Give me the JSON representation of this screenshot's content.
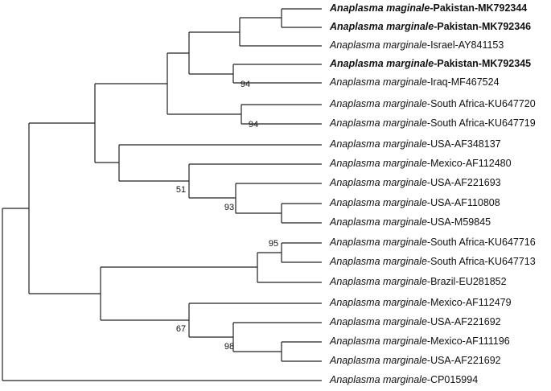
{
  "leaves": [
    {
      "species": "Anaplasma maginale",
      "suffix": "-Pakistan-MK792344",
      "bold": true
    },
    {
      "species": "Anaplasma marginale",
      "suffix": "-Pakistan-MK792346",
      "bold": true
    },
    {
      "species": "Anaplasma marginale",
      "suffix": "-Israel-AY841153",
      "bold": false
    },
    {
      "species": "Anaplasma marginale",
      "suffix": "-Pakistan-MK792345",
      "bold": true
    },
    {
      "species": "Anaplasma marginale",
      "suffix": "-Iraq-MF467524",
      "bold": false
    },
    {
      "species": "Anaplasma marginale",
      "suffix": "-South Africa-KU647720",
      "bold": false
    },
    {
      "species": "Anaplasma marginale",
      "suffix": "-South Africa-KU647719",
      "bold": false
    },
    {
      "species": "Anaplasma marginale",
      "suffix": "-USA-AF348137",
      "bold": false
    },
    {
      "species": "Anaplasma marginale",
      "suffix": "-Mexico-AF112480",
      "bold": false
    },
    {
      "species": "Anaplasma marginale",
      "suffix": "-USA-AF221693",
      "bold": false
    },
    {
      "species": "Anaplasma marginale",
      "suffix": "-USA-AF110808",
      "bold": false
    },
    {
      "species": "Anaplasma marginale",
      "suffix": "-USA-M59845",
      "bold": false
    },
    {
      "species": "Anaplasma marginale",
      "suffix": "-South Africa-KU647716",
      "bold": false
    },
    {
      "species": "Anaplasma marginale",
      "suffix": "-South Africa-KU647713",
      "bold": false
    },
    {
      "species": "Anaplasma marginale",
      "suffix": "-Brazil-EU281852",
      "bold": false
    },
    {
      "species": "Anaplasma marginale",
      "suffix": "-Mexico-AF112479",
      "bold": false
    },
    {
      "species": "Anaplasma marginale",
      "suffix": "-USA-AF221692",
      "bold": false
    },
    {
      "species": "Anaplasma marginale",
      "suffix": "-Mexico-AF111196",
      "bold": false
    },
    {
      "species": "Anaplasma marginale",
      "suffix": "-USA-AF221692",
      "bold": false
    },
    {
      "species": "Anaplasma marginale",
      "suffix": "-CP015994",
      "bold": false
    }
  ],
  "bootstrap": [
    "94",
    "94",
    "51",
    "93",
    "95",
    "67",
    "98"
  ]
}
